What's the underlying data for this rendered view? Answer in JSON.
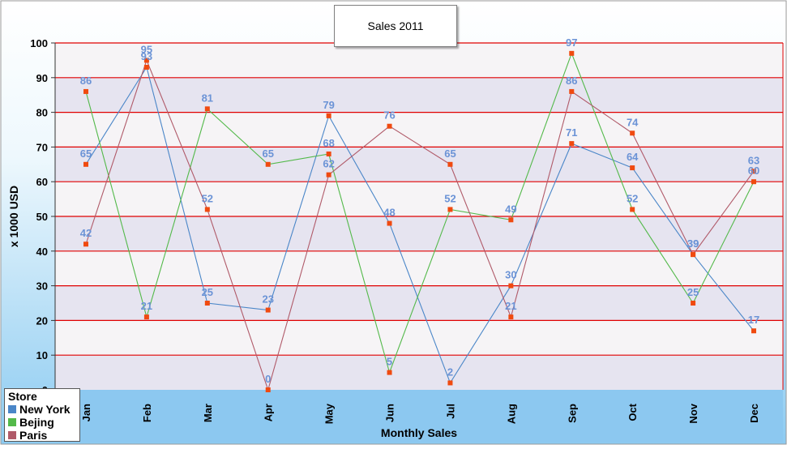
{
  "chart_data": {
    "type": "line",
    "title": "Sales 2011",
    "xlabel": "Monthly Sales",
    "ylabel": "x 1000 USD",
    "categories": [
      "Jan",
      "Feb",
      "Mar",
      "Apr",
      "May",
      "Jun",
      "Jul",
      "Aug",
      "Sep",
      "Oct",
      "Nov",
      "Dec"
    ],
    "ylim": [
      0,
      100
    ],
    "yticks": [
      0,
      10,
      20,
      30,
      40,
      50,
      60,
      70,
      80,
      90,
      100
    ],
    "grid": true,
    "legend_title": "Store",
    "legend_position": "bottom-left",
    "series": [
      {
        "name": "New York",
        "color": "#4a86c8",
        "values": [
          65,
          93,
          25,
          23,
          79,
          48,
          2,
          30,
          71,
          64,
          39,
          17
        ]
      },
      {
        "name": "Bejing",
        "color": "#53b94a",
        "values": [
          86,
          21,
          81,
          65,
          68,
          5,
          52,
          49,
          97,
          52,
          25,
          60
        ]
      },
      {
        "name": "Paris",
        "color": "#b05a69",
        "values": [
          42,
          95,
          52,
          0,
          62,
          76,
          65,
          21,
          86,
          74,
          39,
          63
        ]
      }
    ]
  },
  "colors": {
    "band_dark": "#e6e4f0",
    "band_light": "#f6f4f6",
    "gridline": "#e00000",
    "marker": "#f04a10",
    "data_label": "#6b93d6",
    "axis_band": "#8cc8f0"
  }
}
